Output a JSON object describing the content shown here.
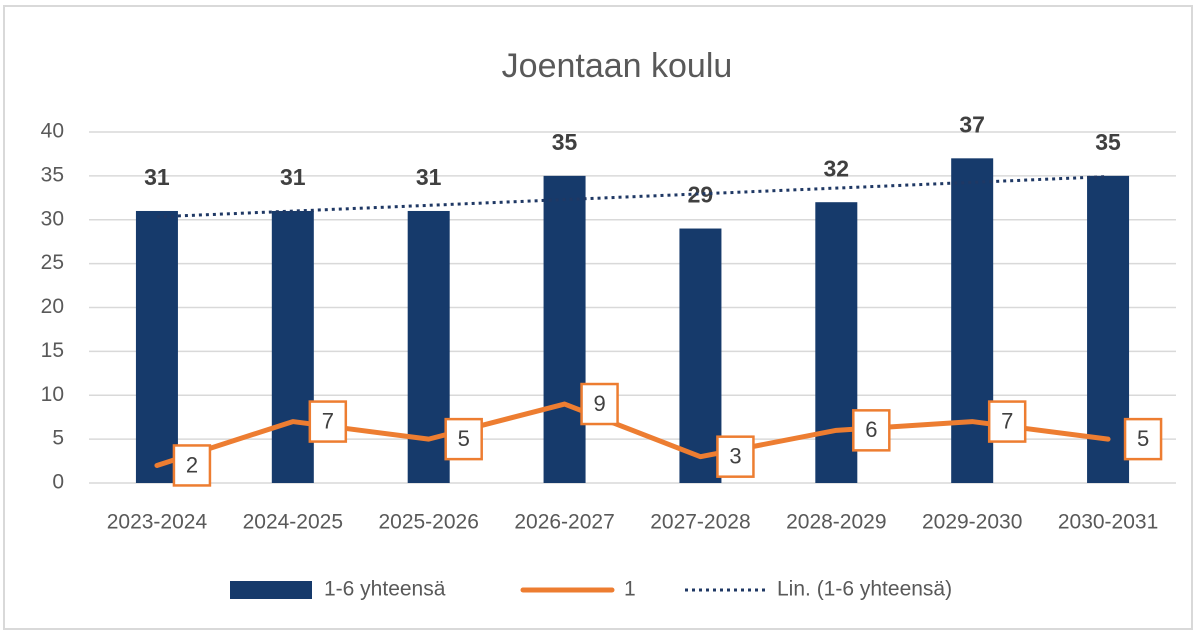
{
  "chart_data": {
    "type": "bar-line",
    "title": "Joentaan koulu",
    "categories": [
      "2023-2024",
      "2024-2025",
      "2025-2026",
      "2026-2027",
      "2027-2028",
      "2028-2029",
      "2029-2030",
      "2030-2031"
    ],
    "series": [
      {
        "name": "1-6 yhteensä",
        "type": "bar",
        "color": "#163a6b",
        "values": [
          31,
          31,
          31,
          35,
          29,
          32,
          37,
          35
        ]
      },
      {
        "name": "1",
        "type": "line",
        "color": "#ed7d31",
        "values": [
          2,
          7,
          5,
          9,
          3,
          6,
          7,
          5
        ]
      },
      {
        "name": "Lin. (1-6 yhteensä)",
        "type": "trendline",
        "trend_of": 0,
        "color": "#1f3864"
      }
    ],
    "ylim": [
      0,
      40
    ],
    "yticks": [
      0,
      5,
      10,
      15,
      20,
      25,
      30,
      35,
      40
    ],
    "grid": true,
    "legend": "bottom"
  }
}
